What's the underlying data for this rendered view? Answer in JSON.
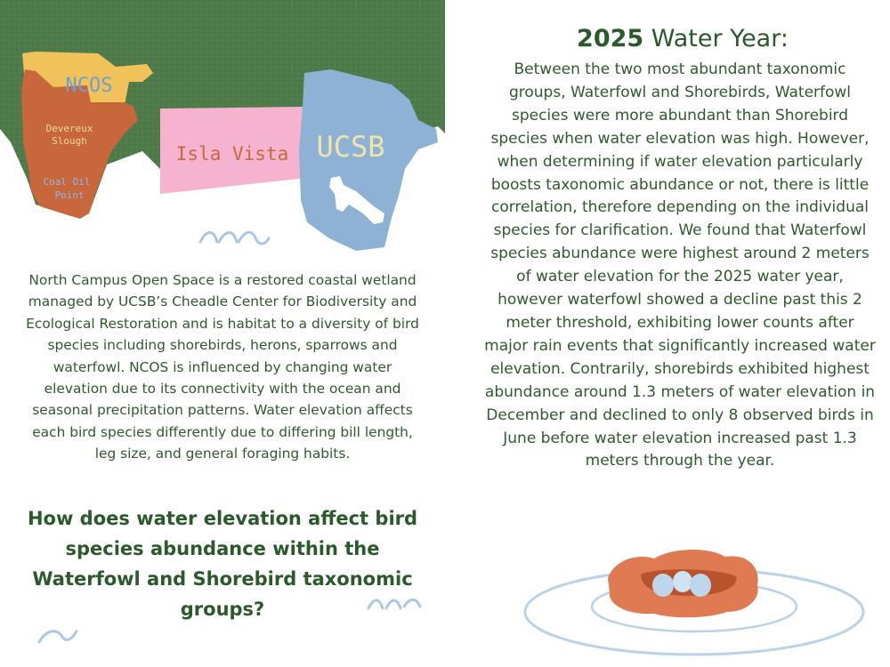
{
  "map": {
    "labels": {
      "ncos": "NCOS",
      "devereux": "Devereux Slough",
      "coal_oil": "Coal Oil Point",
      "isla_vista": "Isla Vista",
      "ucsb": "UCSB"
    },
    "colors": {
      "land_green": "#4f7a4a",
      "ncos_yellow": "#f2c25a",
      "devereux_orange": "#c9673c",
      "isla_vista_pink": "#f5b3cf",
      "ucsb_blue": "#8db2d6",
      "text_green": "#2f5a2c"
    }
  },
  "intro": {
    "text": "North Campus Open Space is a restored coastal wetland managed by UCSB’s Cheadle Center for Biodiversity and Ecological Restoration and is habitat to a diversity of bird species including shorebirds, herons, sparrows and waterfowl. NCOS is influenced by changing water elevation due to its connectivity with the ocean and seasonal precipitation patterns. Water elevation affects each bird species differently due to differing bill length, leg size, and general foraging habits."
  },
  "question": {
    "text": "How does water elevation affect bird species abundance within the Waterfowl and Shorebird taxonomic groups?"
  },
  "findings": {
    "year": "2025",
    "title_rest": " Water Year:",
    "text": "Between the two most abundant taxonomic groups, Waterfowl and Shorebirds, Waterfowl species were more abundant than Shorebird species when water elevation was high. However, when determining if water elevation particularly boosts taxonomic abundance or not, there is little correlation, therefore depending on the individual species for clarification. We found that Waterfowl species abundance were highest around 2 meters of water elevation for the 2025 water year, however waterfowl showed a decline past this 2 meter threshold, exhibiting lower counts after major rain events that significantly increased water elevation. Contrarily, shorebirds exhibited highest abundance around 1.3 meters of water elevation in December and declined to only 8 observed birds in June before water elevation increased past 1.3 meters through the year."
  }
}
